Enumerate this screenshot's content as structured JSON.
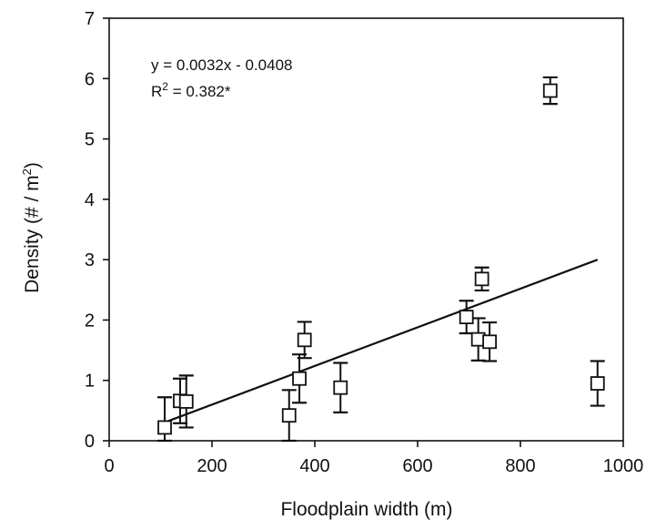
{
  "chart_data": {
    "type": "scatter",
    "xlabel": "Floodplain width (m)",
    "ylabel_main": "Density (# / m",
    "ylabel_sup": "2",
    "ylabel_close": ")",
    "xlim": [
      0,
      1000
    ],
    "ylim": [
      0,
      7
    ],
    "xticks": [
      0,
      200,
      400,
      600,
      800,
      1000
    ],
    "yticks": [
      0,
      1,
      2,
      3,
      4,
      5,
      6,
      7
    ],
    "grid": false,
    "points": [
      {
        "x": 108,
        "y": 0.22,
        "err": 0.5
      },
      {
        "x": 138,
        "y": 0.66,
        "err": 0.37
      },
      {
        "x": 150,
        "y": 0.65,
        "err": 0.43
      },
      {
        "x": 350,
        "y": 0.42,
        "err": 0.42
      },
      {
        "x": 370,
        "y": 1.03,
        "err": 0.4
      },
      {
        "x": 380,
        "y": 1.67,
        "err": 0.3
      },
      {
        "x": 450,
        "y": 0.88,
        "err": 0.41
      },
      {
        "x": 695,
        "y": 2.05,
        "err": 0.27
      },
      {
        "x": 718,
        "y": 1.68,
        "err": 0.35
      },
      {
        "x": 725,
        "y": 2.68,
        "err": 0.19
      },
      {
        "x": 740,
        "y": 1.64,
        "err": 0.32
      },
      {
        "x": 858,
        "y": 5.8,
        "err": 0.22
      },
      {
        "x": 950,
        "y": 0.95,
        "err": 0.37
      }
    ],
    "fit": {
      "slope": 0.0032,
      "intercept": -0.0408,
      "x_range": [
        108,
        950
      ]
    },
    "annotation": {
      "equation": "y = 0.0032x - 0.0408",
      "r2_prefix": "R",
      "r2_sup": "2",
      "r2_value": " = 0.382*"
    }
  }
}
